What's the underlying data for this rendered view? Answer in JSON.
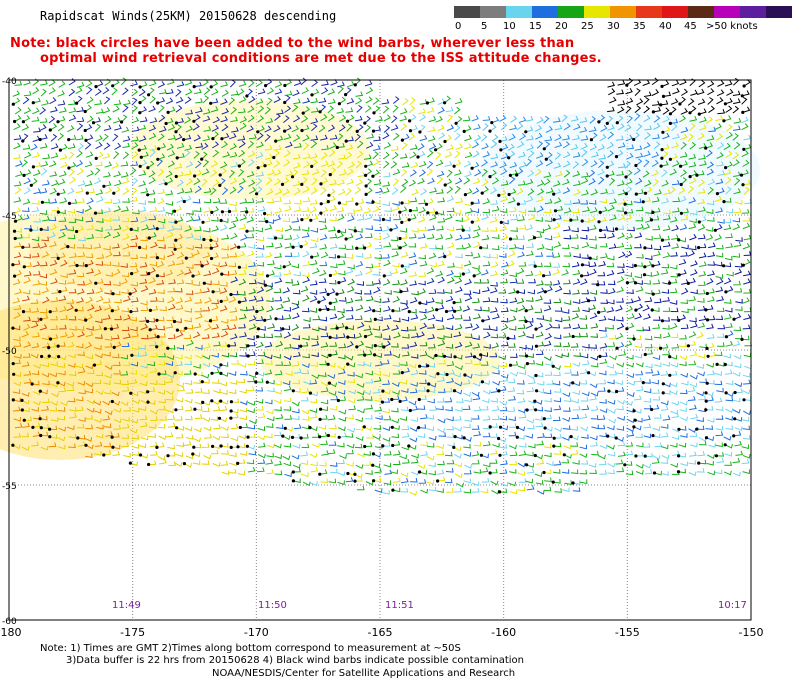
{
  "header": {
    "title": "Rapidscat Winds(25KM) 20150628 descending",
    "note_line1": "Note: black circles have been added to the wind barbs, wherever less than",
    "note_line2": "optimal wind retrieval conditions are met due to the ISS attitude changes."
  },
  "legend": {
    "labels": [
      "0",
      "5",
      "10",
      "15",
      "20",
      "25",
      "30",
      "35",
      "40",
      "45",
      ">50 knots"
    ],
    "colors": [
      "#555555",
      "#888888",
      "#6fd6ef",
      "#1f6fe0",
      "#0d1aa0",
      "#19b419",
      "#e6e600",
      "#ee9900",
      "#e23a00",
      "#d11a1a",
      "#8b2f1a",
      "#b200b2",
      "#6a1fa8"
    ]
  },
  "axes": {
    "lon_labels": [
      "-180",
      "-175",
      "-170",
      "-165",
      "-160",
      "-155",
      "-150"
    ],
    "lat_labels": [
      "-40",
      "-45",
      "-50",
      "-55",
      "-60"
    ]
  },
  "times": [
    "11:49",
    "11:50",
    "11:51",
    "10:17"
  ],
  "footer": {
    "line1": "Note: 1) Times are GMT 2)Times along bottom correspond to measurement at ~50S",
    "line2": "3)Data buffer is 22 hrs from 20150628 4) Black wind barbs indicate possible contamination",
    "line3": "NOAA/NESDIS/Center for Satellite Applications and Research"
  }
}
